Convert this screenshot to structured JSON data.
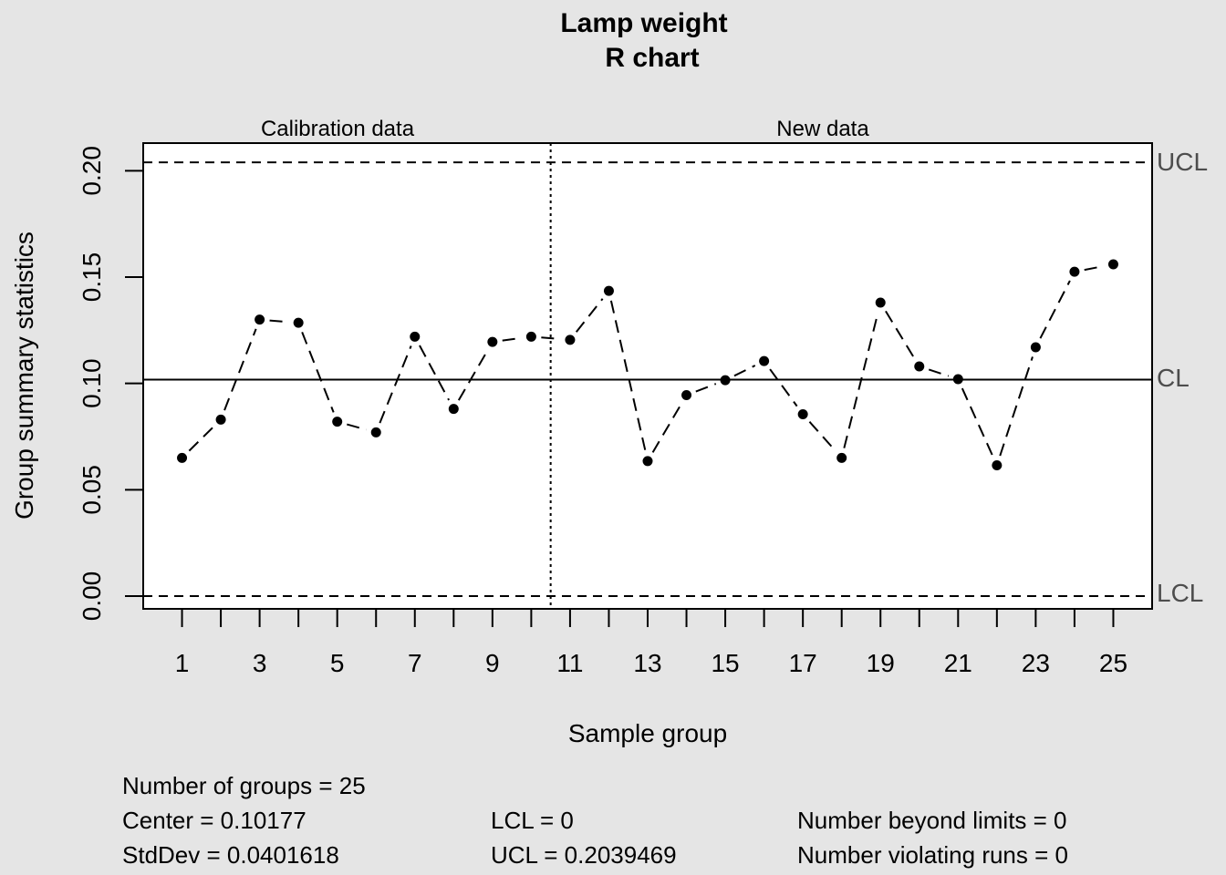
{
  "chart_data": {
    "type": "line",
    "title": "Lamp weight",
    "subtitle": "R chart",
    "xlabel": "Sample group",
    "ylabel": "Group summary statistics",
    "ylim": [
      -0.006,
      0.213
    ],
    "xlim": [
      0,
      26
    ],
    "x_ticks": [
      1,
      2,
      3,
      4,
      5,
      6,
      7,
      8,
      9,
      10,
      11,
      12,
      13,
      14,
      15,
      16,
      17,
      18,
      19,
      20,
      21,
      22,
      23,
      24,
      25
    ],
    "x_tick_labels": [
      "1",
      "",
      "3",
      "",
      "5",
      "",
      "7",
      "",
      "9",
      "",
      "11",
      "",
      "13",
      "",
      "15",
      "",
      "17",
      "",
      "19",
      "",
      "21",
      "",
      "23",
      "",
      "25"
    ],
    "y_ticks": [
      0.0,
      0.05,
      0.1,
      0.15,
      0.2
    ],
    "y_tick_labels": [
      "0.00",
      "0.05",
      "0.10",
      "0.15",
      "0.20"
    ],
    "region_labels": {
      "calibration": "Calibration data",
      "new": "New data"
    },
    "divider_x": 10.5,
    "limits": {
      "ucl": 0.2039469,
      "cl": 0.10177,
      "lcl": 0,
      "ucl_label": "UCL",
      "cl_label": "CL",
      "lcl_label": "LCL"
    },
    "grid": false,
    "series": [
      {
        "x": [
          1,
          2,
          3,
          4,
          5,
          6,
          7,
          8,
          9,
          10,
          11,
          12,
          13,
          14,
          15,
          16,
          17,
          18,
          19,
          20,
          21,
          22,
          23,
          24,
          25
        ],
        "values": [
          0.065,
          0.083,
          0.13,
          0.1285,
          0.082,
          0.077,
          0.122,
          0.088,
          0.1195,
          0.122,
          0.1205,
          0.1435,
          0.0635,
          0.0945,
          0.1015,
          0.1105,
          0.0855,
          0.065,
          0.138,
          0.108,
          0.102,
          0.0615,
          0.117,
          0.1525,
          0.156
        ]
      }
    ]
  },
  "stats": {
    "groups": "Number of groups = 25",
    "center": "Center = 0.10177",
    "stddev": "StdDev = 0.0401618",
    "lcl": "LCL = 0",
    "ucl": "UCL = 0.2039469",
    "beyond": "Number beyond limits = 0",
    "runs": "Number violating runs = 0"
  }
}
